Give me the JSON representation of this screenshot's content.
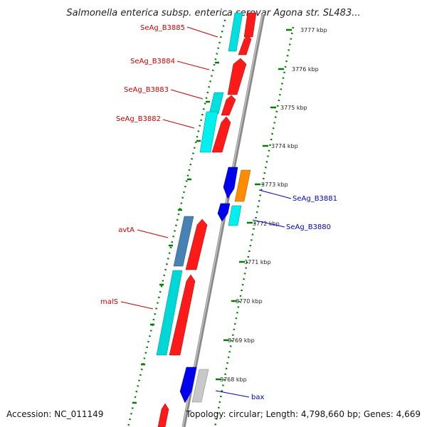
{
  "title": "Salmonella enterica subsp. enterica serovar Agona str. SL483...",
  "footer": {
    "accession": "Accession: NC_011149",
    "summary": "Topology: circular; Length: 4,798,660 bp; Genes: 4,669"
  },
  "colors": {
    "backbone": "#8a8a8a",
    "cds_forward": "#ff0000",
    "cds_reverse": "#0000ff",
    "trna_like": "#00ffff",
    "steel": "#4682b4",
    "orange": "#ff8c00",
    "grey_feature": "#c0c0c0",
    "label_red": "#cc0000",
    "label_blue": "#0000cc",
    "tick_green": "#008000"
  },
  "ticks": [
    "3777 kbp",
    "3776 kbp",
    "3775 kbp",
    "3774 kbp",
    "3773 kbp",
    "3772 kbp",
    "3771 kbp",
    "3770 kbp",
    "3769 kbp",
    "3768 kbp"
  ],
  "gene_labels": [
    {
      "text": "SeAg_B3885",
      "color": "red"
    },
    {
      "text": "SeAg_B3884",
      "color": "red"
    },
    {
      "text": "SeAg_B3883",
      "color": "red"
    },
    {
      "text": "SeAg_B3882",
      "color": "red"
    },
    {
      "text": "SeAg_B3881",
      "color": "blue"
    },
    {
      "text": "SeAg_B3880",
      "color": "blue"
    },
    {
      "text": "avtA",
      "color": "red"
    },
    {
      "text": "malS",
      "color": "red"
    },
    {
      "text": "bax",
      "color": "blue"
    }
  ]
}
